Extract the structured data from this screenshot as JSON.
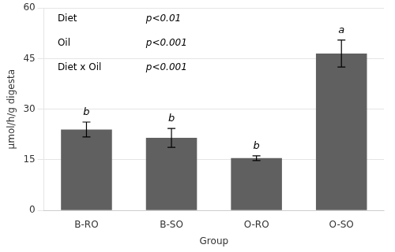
{
  "chart_data": {
    "type": "bar",
    "categories": [
      "B-RO",
      "B-SO",
      "O-RO",
      "O-SO"
    ],
    "values": [
      24.0,
      21.5,
      15.5,
      46.5
    ],
    "errors": [
      2.2,
      2.8,
      0.7,
      4.0
    ],
    "letters": [
      "b",
      "b",
      "b",
      "a"
    ],
    "color": "#606060",
    "xlabel": "Group",
    "ylabel": "μmol/h/g digesta",
    "ylim": [
      0,
      60
    ],
    "yticks": [
      0,
      15,
      30,
      45,
      60
    ],
    "grid": true,
    "annotations": [
      {
        "label": "Diet",
        "p_value": "p<0.01"
      },
      {
        "label": "Oil",
        "p_value": "p<0.001"
      },
      {
        "label": "Diet x Oil",
        "p_value": "p<0.001"
      }
    ]
  }
}
